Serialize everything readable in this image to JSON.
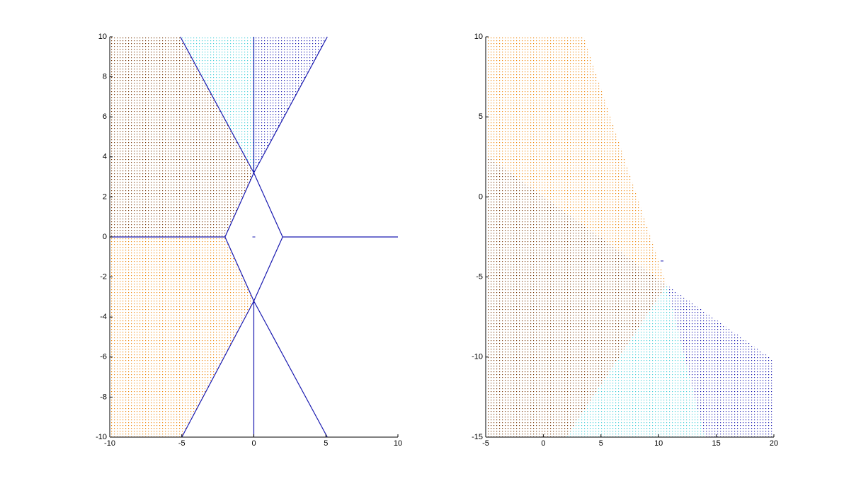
{
  "chart_data": [
    {
      "type": "scatter",
      "xlim": [
        -10,
        10
      ],
      "ylim": [
        -10,
        10
      ],
      "xticks": [
        -10,
        -5,
        0,
        5,
        10
      ],
      "yticks": [
        -10,
        -8,
        -6,
        -4,
        -2,
        0,
        2,
        4,
        6,
        8,
        10
      ],
      "regions": [
        {
          "color": "#7a3b0c",
          "x": [
            -10,
            -2,
            0,
            -5.1,
            -10
          ],
          "y": [
            0,
            0,
            3.2,
            10,
            10
          ]
        },
        {
          "color": "#f08a10",
          "x": [
            -10,
            -2,
            0,
            -5,
            -10
          ],
          "y": [
            0,
            0,
            -3.2,
            -10,
            -10
          ]
        },
        {
          "color": "#45cfd8",
          "x": [
            0,
            -5.1,
            0
          ],
          "y": [
            3.2,
            10,
            10
          ]
        },
        {
          "color": "#1a1ab0",
          "x": [
            0,
            0,
            5.1
          ],
          "y": [
            3.2,
            10,
            10
          ]
        }
      ],
      "lines": [
        {
          "color": "#1a1ab0",
          "x": [
            -10,
            -2,
            0,
            2,
            0,
            -2,
            null,
            2,
            10,
            null,
            0,
            0,
            null,
            0,
            -5.1,
            null,
            0,
            5.1,
            null,
            0,
            0,
            null,
            0,
            -5,
            null,
            0,
            5.1
          ],
          "y": [
            0,
            0,
            3.2,
            0,
            -3.2,
            0,
            null,
            0,
            0,
            null,
            3.2,
            10,
            null,
            3.2,
            10,
            null,
            3.2,
            10,
            null,
            -3.2,
            -10,
            null,
            -3.2,
            -10,
            null,
            -3.2,
            -10
          ]
        }
      ],
      "markers": [
        {
          "color": "#1a1ab0",
          "x": [
            0
          ],
          "y": [
            0
          ]
        }
      ]
    },
    {
      "type": "scatter",
      "xlim": [
        -5,
        20
      ],
      "ylim": [
        -15,
        10
      ],
      "xticks": [
        -5,
        0,
        5,
        10,
        15,
        20
      ],
      "yticks": [
        -15,
        -10,
        -5,
        0,
        5,
        10
      ],
      "regions": [
        {
          "color": "#f08a10",
          "x": [
            -5,
            -5,
            3.5,
            10.7
          ],
          "y": [
            2.6,
            10,
            10,
            -5.5
          ]
        },
        {
          "color": "#7a3b0c",
          "x": [
            -5,
            10.7,
            2,
            -5
          ],
          "y": [
            2.6,
            -5.5,
            -15,
            -15
          ]
        },
        {
          "color": "#45cfd8",
          "x": [
            10.7,
            2,
            14
          ],
          "y": [
            -5.5,
            -15,
            -15
          ]
        },
        {
          "color": "#1a1ab0",
          "x": [
            10.7,
            20,
            20,
            14
          ],
          "y": [
            -5.5,
            -10.2,
            -15,
            -15
          ]
        }
      ],
      "markers": [
        {
          "color": "#1a1ab0",
          "x": [
            10.3
          ],
          "y": [
            -4
          ]
        }
      ]
    }
  ]
}
